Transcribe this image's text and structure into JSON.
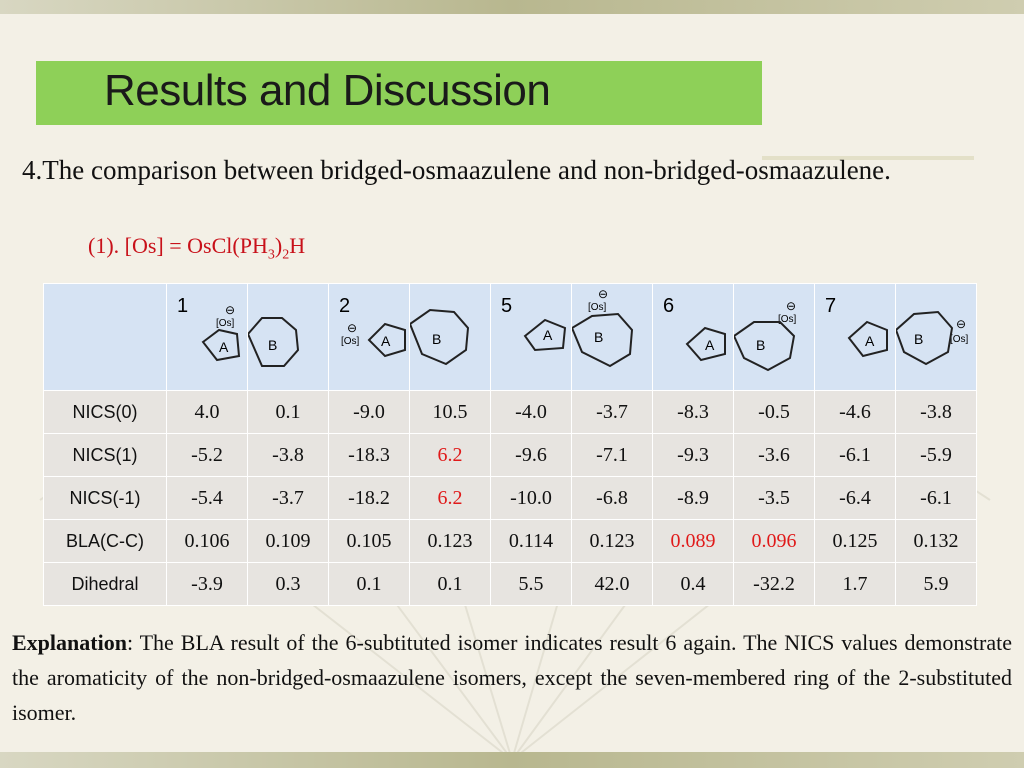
{
  "slide": {
    "title": "Results and Discussion",
    "point": "4.The comparison between bridged-osmaazulene and non-bridged-osmaazulene.",
    "note": {
      "prefix": "(1). [Os] = OsCl(PH",
      "sub1": "3",
      "mid": ")",
      "sub2": "2",
      "suffix": "H"
    },
    "table": {
      "compounds": [
        "1",
        "2",
        "5",
        "6",
        "7"
      ],
      "struct_labels": {
        "a": "A",
        "b": "B",
        "os": "[Os]",
        "minus": "⊖"
      },
      "rows": [
        {
          "label": "NICS(0)",
          "values": [
            "4.0",
            "0.1",
            "-9.0",
            "10.5",
            "-4.0",
            "-3.7",
            "-8.3",
            "-0.5",
            "-4.6",
            "-3.8"
          ],
          "red": []
        },
        {
          "label": "NICS(1)",
          "values": [
            "-5.2",
            "-3.8",
            "-18.3",
            "6.2",
            "-9.6",
            "-7.1",
            "-9.3",
            "-3.6",
            "-6.1",
            "-5.9"
          ],
          "red": [
            3
          ]
        },
        {
          "label": "NICS(-1)",
          "values": [
            "-5.4",
            "-3.7",
            "-18.2",
            "6.2",
            "-10.0",
            "-6.8",
            "-8.9",
            "-3.5",
            "-6.4",
            "-6.1"
          ],
          "red": [
            3
          ]
        },
        {
          "label": "BLA(C-C)",
          "values": [
            "0.106",
            "0.109",
            "0.105",
            "0.123",
            "0.114",
            "0.123",
            "0.089",
            "0.096",
            "0.125",
            "0.132"
          ],
          "red": [
            6,
            7
          ]
        },
        {
          "label": "Dihedral",
          "values": [
            "-3.9",
            "0.3",
            "0.1",
            "0.1",
            "5.5",
            "42.0",
            "0.4",
            "-32.2",
            "1.7",
            "5.9"
          ],
          "red": []
        }
      ]
    },
    "explanation": {
      "lead": "Explanation",
      "text": ": The BLA result of the 6-subtituted isomer indicates result 6 again. The NICS values demonstrate the aromaticity of the non-bridged-osmaazulene isomers, except the seven-membered ring of the 2-substituted isomer."
    },
    "colors": {
      "title_bg": "#8ed058",
      "note": "#c8111a",
      "highlight": "#e01a1a",
      "header_bg": "#d6e3f3",
      "cell_bg": "#e7e4e0"
    }
  }
}
